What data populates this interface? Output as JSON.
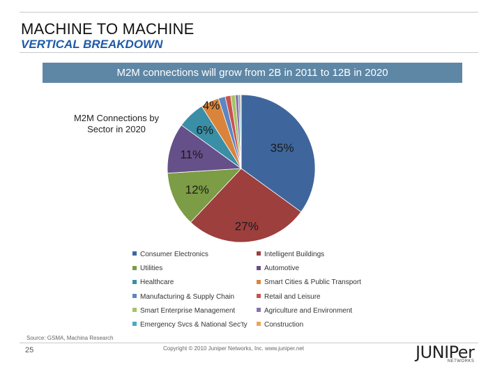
{
  "slide": {
    "title": "MACHINE TO MACHINE",
    "subtitle": "VERTICAL BREAKDOWN",
    "banner": "M2M connections will grow from 2B in 2011 to 12B in 2020",
    "source": "Source: GSMA, Machina Research",
    "page_number": "25",
    "copyright": "Copyright © 2010 Juniper Networks, Inc.    www.juniper.net",
    "logo_text": "JUNIPer",
    "logo_sub": "NETWORKS"
  },
  "chart_data": {
    "type": "pie",
    "title": "M2M Connections by Sector in 2020",
    "start_angle_deg": 0,
    "slices": [
      {
        "name": "Consumer Electronics",
        "value": 35,
        "label": "35%",
        "color": "#3e669c"
      },
      {
        "name": "Intelligent Buildings",
        "value": 27,
        "label": "27%",
        "color": "#9c3f3d"
      },
      {
        "name": "Utilities",
        "value": 12,
        "label": "12%",
        "color": "#7c9c45"
      },
      {
        "name": "Automotive",
        "value": 11,
        "label": "11%",
        "color": "#66508a"
      },
      {
        "name": "Healthcare",
        "value": 6,
        "label": "6%",
        "color": "#3a8ea6"
      },
      {
        "name": "Smart Cities & Public Transport",
        "value": 4,
        "label": "4%",
        "color": "#d9843a"
      },
      {
        "name": "Manufacturing & Supply Chain",
        "value": 1.5,
        "label": "",
        "color": "#5c86c2"
      },
      {
        "name": "Retail and Leisure",
        "value": 1.2,
        "label": "",
        "color": "#c9524e"
      },
      {
        "name": "Smart Enterprise Management",
        "value": 1.0,
        "label": "",
        "color": "#a4c466"
      },
      {
        "name": "Agriculture and Environment",
        "value": 0.7,
        "label": "",
        "color": "#8a72ad"
      },
      {
        "name": "Emergency Svcs & National Sec'ty",
        "value": 0.4,
        "label": "",
        "color": "#48aac4"
      },
      {
        "name": "Construction",
        "value": 0.2,
        "label": "",
        "color": "#f0a458"
      }
    ],
    "legend": [
      "Consumer Electronics",
      "Intelligent Buildings",
      "Utilities",
      "Automotive",
      "Healthcare",
      "Smart Cities & Public Transport",
      "Manufacturing & Supply Chain",
      "Retail and Leisure",
      "Smart Enterprise Management",
      "Agriculture and Environment",
      "Emergency Svcs & National Sec'ty",
      "Construction"
    ],
    "legend_placement": "bottom"
  }
}
